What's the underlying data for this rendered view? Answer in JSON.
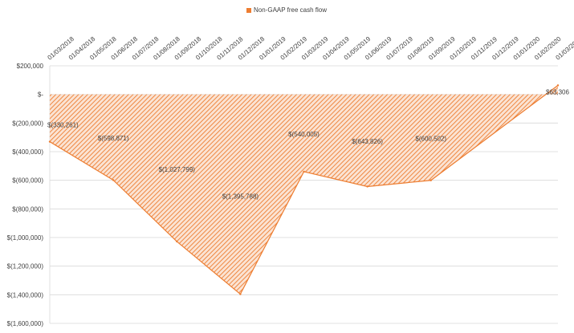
{
  "chart_data": {
    "type": "area",
    "legend": {
      "position": "top",
      "label": "Non-GAAP free cash flow"
    },
    "series": [
      {
        "name": "Non-GAAP free cash flow",
        "color": "#ed7d31",
        "fill_pattern": "diagonal-hatch",
        "x": [
          "01/03/2018",
          "01/06/2018",
          "01/09/2018",
          "01/12/2018",
          "01/03/2019",
          "01/06/2019",
          "01/09/2019",
          "01/03/2020"
        ],
        "values": [
          -330261,
          -598871,
          -1027799,
          -1395788,
          -540005,
          -643826,
          -600502,
          63306
        ],
        "labels": [
          "$(330,261)",
          "$(598,871)",
          "$(1,027,799)",
          "$(1,395,788)",
          "$(540,005)",
          "$(643,826)",
          "$(600,502)",
          "$63,306"
        ]
      }
    ],
    "x_tick_labels": [
      "01/03/2018",
      "01/04/2018",
      "01/05/2018",
      "01/06/2018",
      "01/07/2018",
      "01/08/2018",
      "01/09/2018",
      "01/10/2018",
      "01/11/2018",
      "01/12/2018",
      "01/01/2019",
      "01/02/2019",
      "01/03/2019",
      "01/04/2019",
      "01/05/2019",
      "01/06/2019",
      "01/07/2019",
      "01/08/2019",
      "01/09/2019",
      "01/10/2019",
      "01/11/2019",
      "01/12/2019",
      "01/01/2020",
      "01/02/2020",
      "01/03/2020"
    ],
    "y_ticks": [
      200000,
      0,
      -200000,
      -400000,
      -600000,
      -800000,
      -1000000,
      -1200000,
      -1400000,
      -1600000
    ],
    "y_tick_labels": [
      "$200,000",
      "$-",
      "$(200,000)",
      "$(400,000)",
      "$(600,000)",
      "$(800,000)",
      "$(1,000,000)",
      "$(1,200,000)",
      "$(1,400,000)",
      "$(1,600,000)"
    ],
    "ylim": [
      -1600000,
      200000
    ],
    "x_axis_position": "top",
    "grid": true
  }
}
